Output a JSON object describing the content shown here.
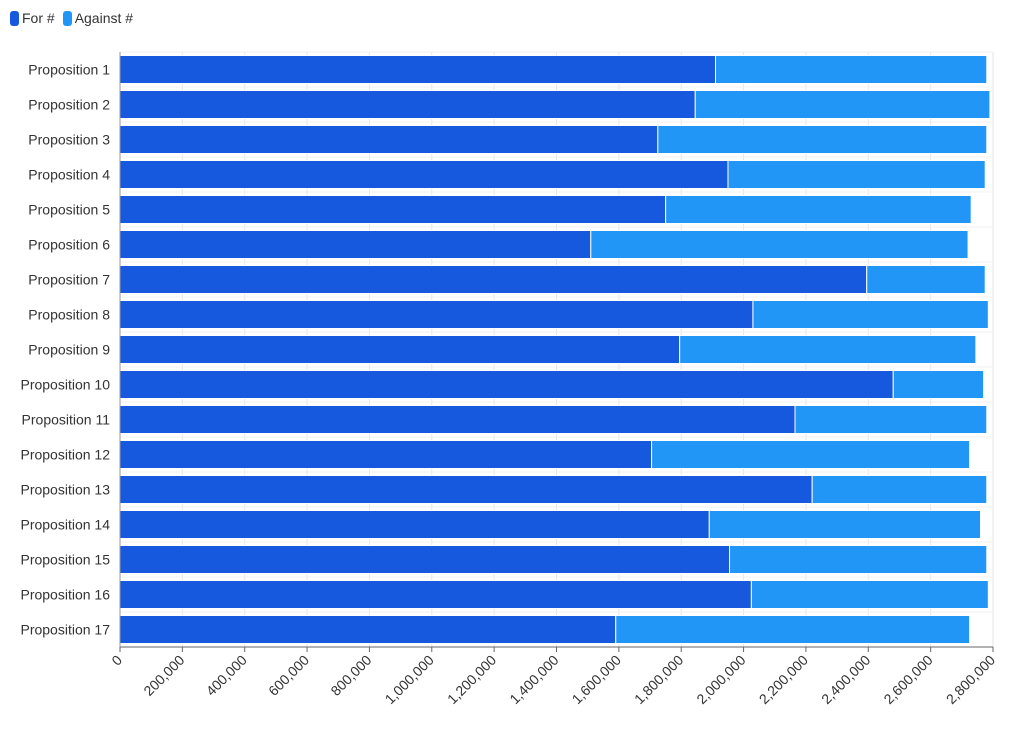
{
  "chart_data": {
    "type": "bar",
    "orientation": "horizontal",
    "stacked": true,
    "categories": [
      "Proposition 1",
      "Proposition 2",
      "Proposition 3",
      "Proposition 4",
      "Proposition 5",
      "Proposition 6",
      "Proposition 7",
      "Proposition 8",
      "Proposition 9",
      "Proposition 10",
      "Proposition 11",
      "Proposition 12",
      "Proposition 13",
      "Proposition 14",
      "Proposition 15",
      "Proposition 16",
      "Proposition 17"
    ],
    "series": [
      {
        "name": "For #",
        "color": "#1659de",
        "values": [
          1910000,
          1845000,
          1725000,
          1950000,
          1750000,
          1510000,
          2395000,
          2030000,
          1795000,
          2480000,
          2165000,
          1705000,
          2220000,
          1890000,
          1955000,
          2025000,
          1590000
        ]
      },
      {
        "name": "Against #",
        "color": "#2196f7",
        "values": [
          870000,
          945000,
          1055000,
          825000,
          980000,
          1210000,
          380000,
          755000,
          950000,
          290000,
          615000,
          1020000,
          560000,
          870000,
          825000,
          760000,
          1135000
        ]
      }
    ],
    "xlim": [
      0,
      2800000
    ],
    "xticks": [
      "0",
      "200,000",
      "400,000",
      "600,000",
      "800,000",
      "1,000,000",
      "1,200,000",
      "1,400,000",
      "1,600,000",
      "1,800,000",
      "2,000,000",
      "2,200,000",
      "2,400,000",
      "2,600,000",
      "2,800,000"
    ],
    "grid": true,
    "legend_position": "top-left",
    "title": "",
    "xlabel": "",
    "ylabel": ""
  }
}
